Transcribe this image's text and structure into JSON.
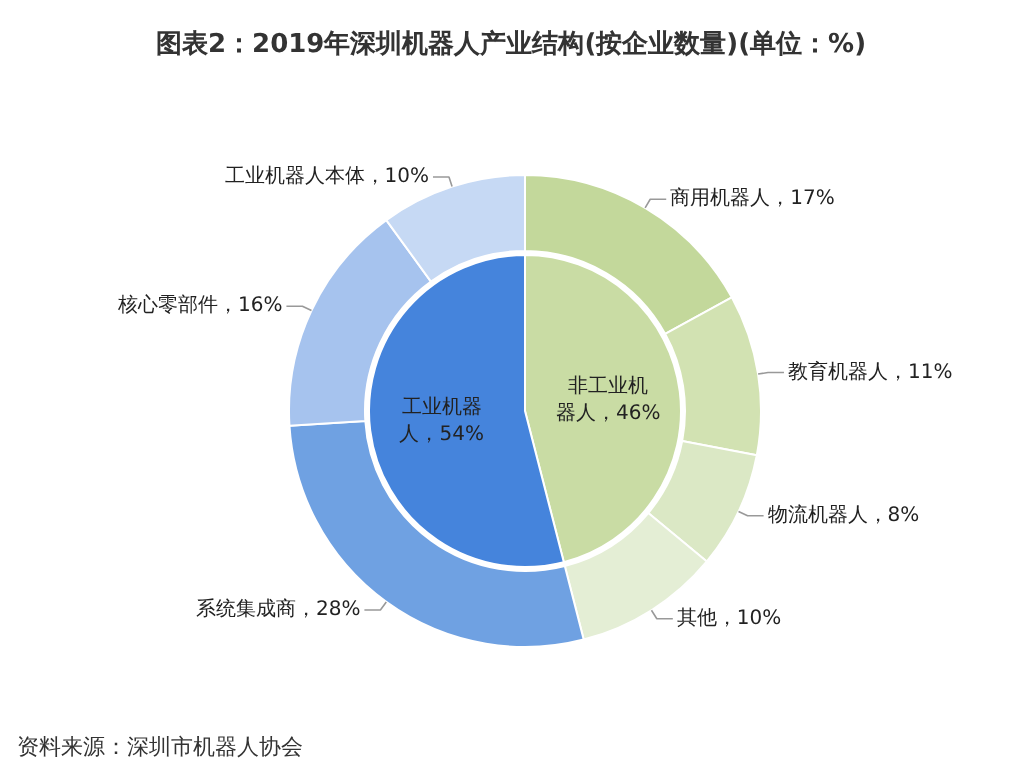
{
  "chart_data": {
    "type": "donut",
    "title": "图表2：2019年深圳机器人产业结构(按企业数量)(单位：%)",
    "data_labels": true,
    "categories": [
      "非工业机器人",
      "工业机器人",
      "商用机器人",
      "教育机器人",
      "物流机器人",
      "其他",
      "系统集成商",
      "核心零部件",
      "工业机器人本体"
    ],
    "series": [
      {
        "type": "pie",
        "values": [
          46,
          54,
          null,
          null,
          null,
          null,
          null,
          null,
          null
        ],
        "colors": [
          "#c9dca4",
          "#4584dc",
          null,
          null,
          null,
          null,
          null,
          null,
          null
        ],
        "value_labels": [
          "，46%",
          "，54%",
          null,
          null,
          null,
          null,
          null,
          null,
          null
        ]
      },
      {
        "values": [
          null,
          null,
          17,
          11,
          8,
          10,
          28,
          16,
          10
        ],
        "colors": [
          null,
          null,
          "#c3d89b",
          "#d2e2b2",
          "#dbe8c5",
          "#e4eed5",
          "#6fa1e2",
          "#a6c3ee",
          "#c6d9f4"
        ],
        "value_labels": [
          null,
          null,
          "，17%",
          "，11%",
          "，8%",
          "，10%",
          "，28%",
          "，16%",
          "，10%"
        ]
      }
    ],
    "annotations": [
      "资料来源：深圳市机器人协会"
    ]
  }
}
